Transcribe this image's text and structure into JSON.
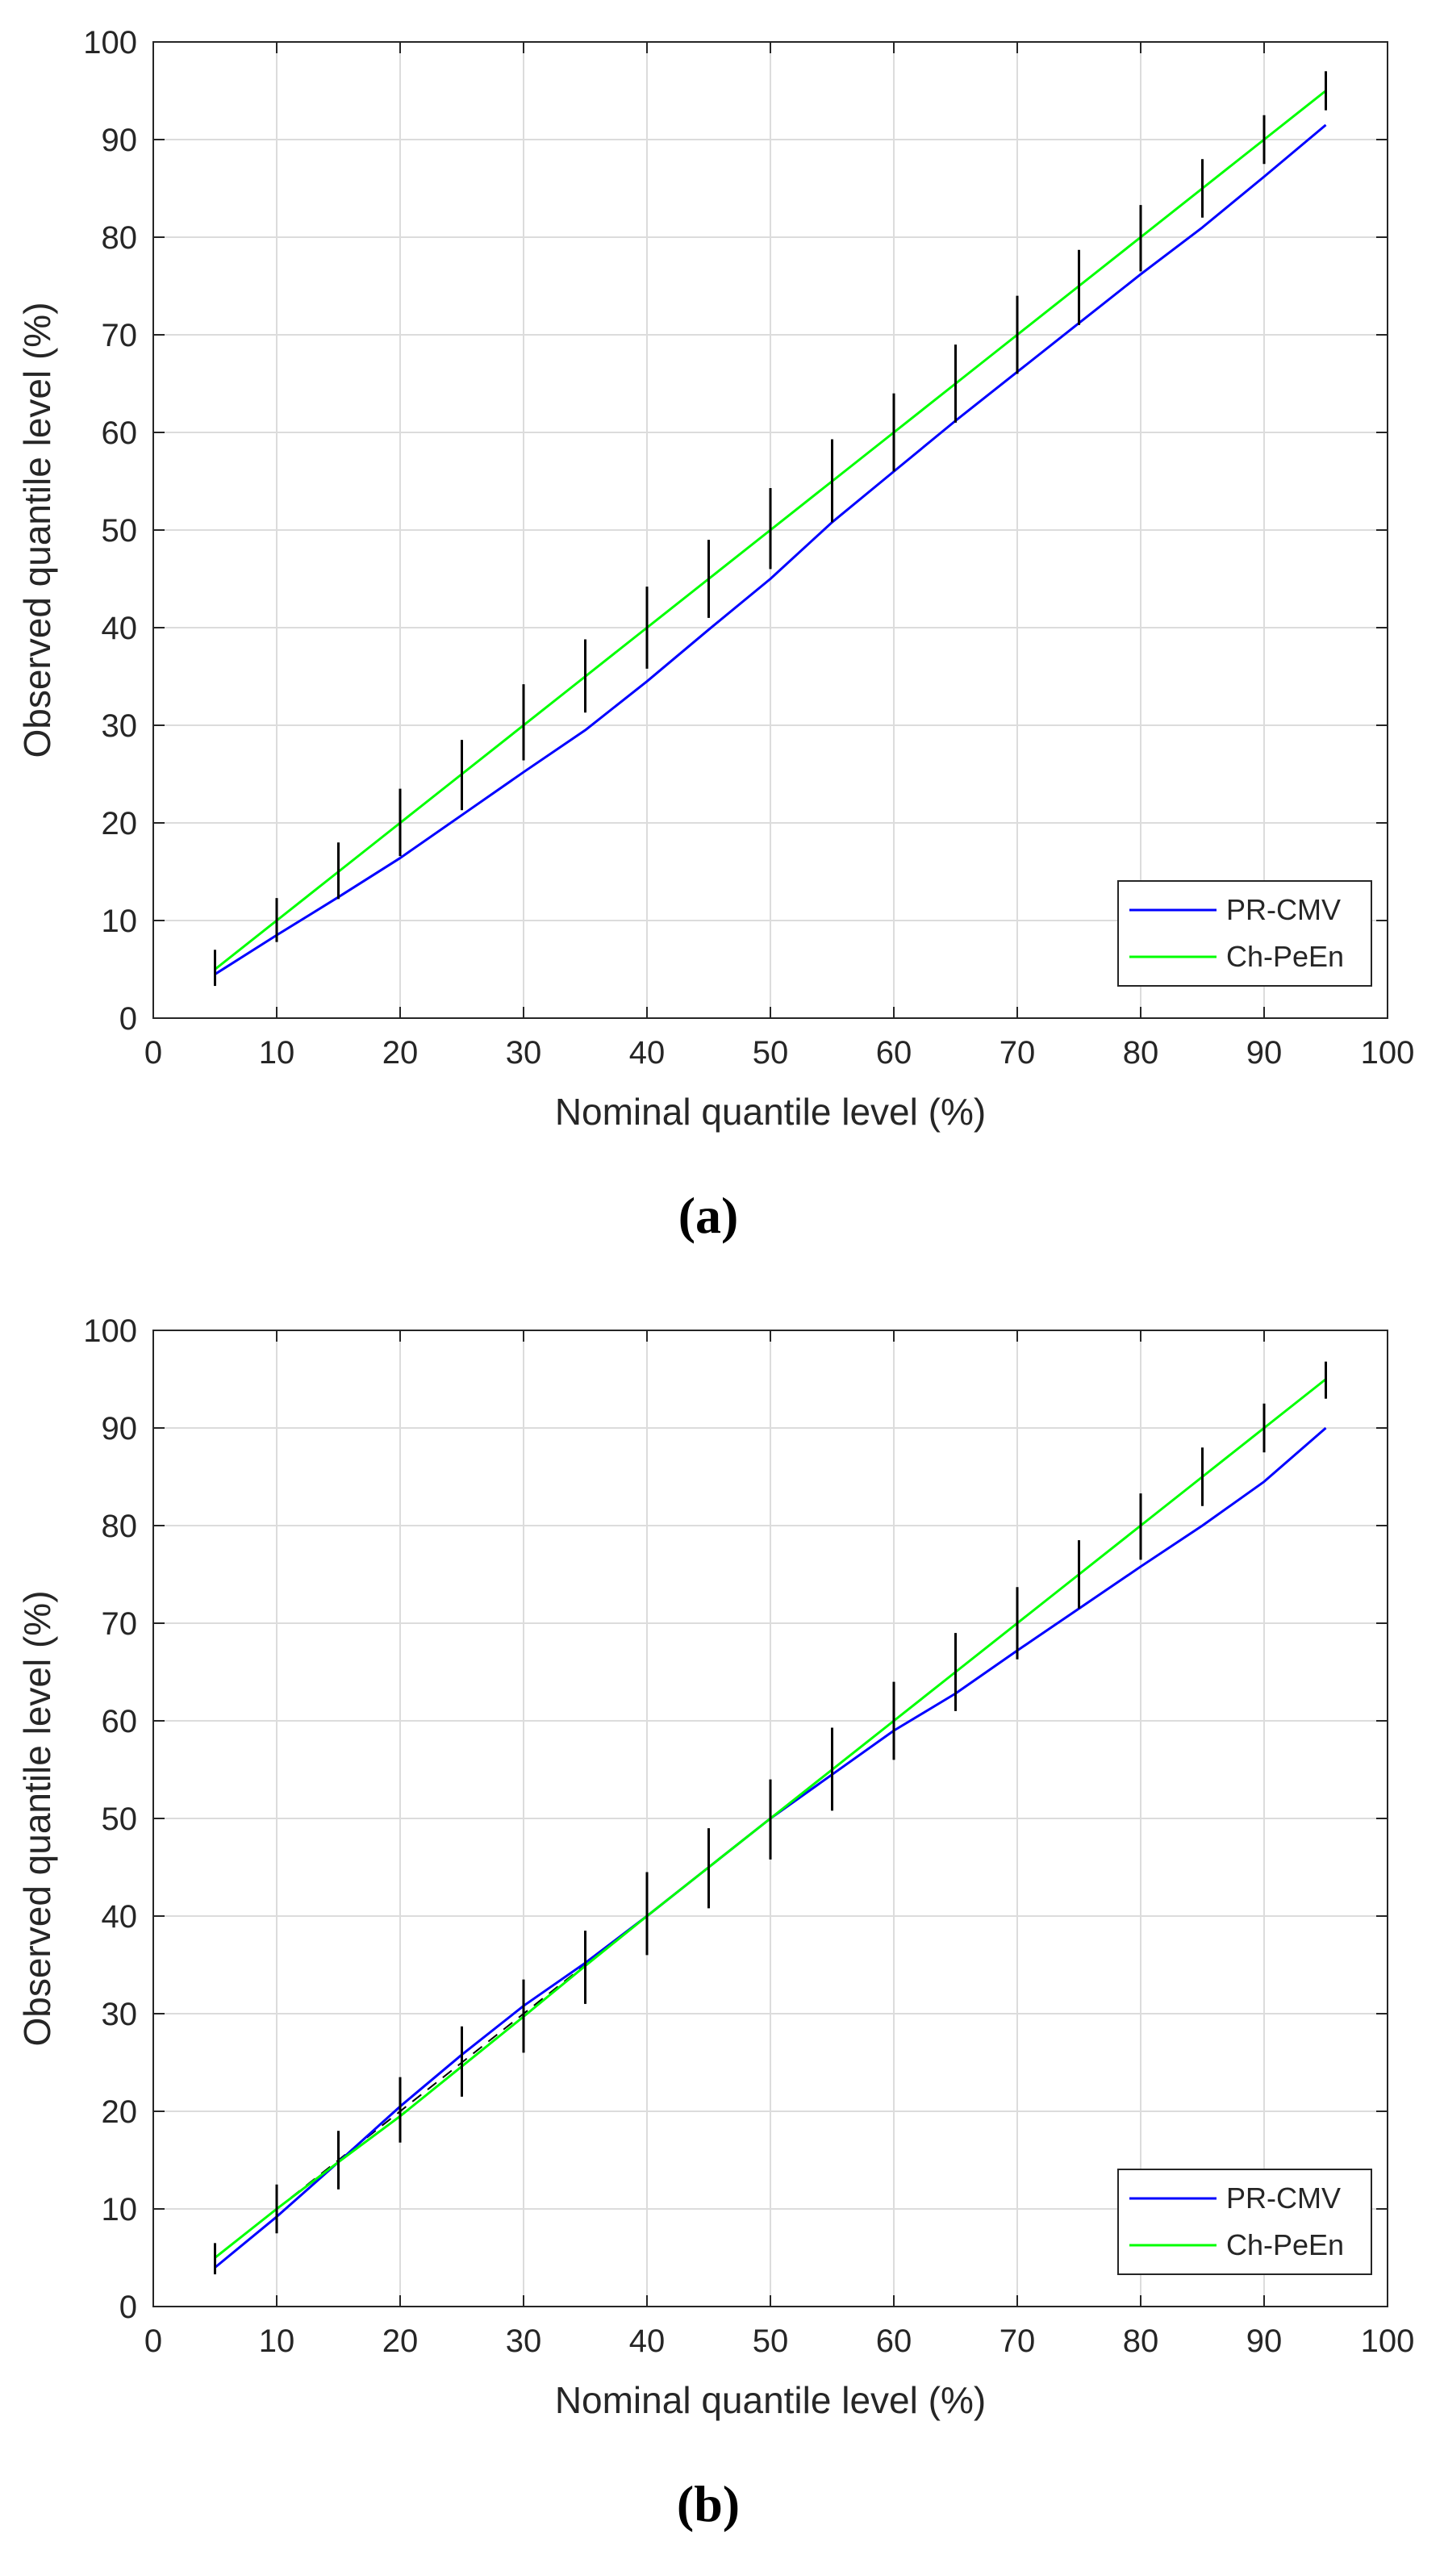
{
  "chart_data": [
    {
      "type": "line",
      "caption": "(a)",
      "xlabel": "Nominal quantile level (%)",
      "ylabel": "Observed quantile level (%)",
      "xlim": [
        0,
        100
      ],
      "ylim": [
        0,
        100
      ],
      "xticks": [
        0,
        10,
        20,
        30,
        40,
        50,
        60,
        70,
        80,
        90,
        100
      ],
      "yticks": [
        0,
        10,
        20,
        30,
        40,
        50,
        60,
        70,
        80,
        90,
        100
      ],
      "grid": true,
      "legend_position": "bottom-right",
      "x": [
        5,
        10,
        15,
        20,
        25,
        30,
        35,
        40,
        45,
        50,
        55,
        60,
        65,
        70,
        75,
        80,
        85,
        90,
        95
      ],
      "series": [
        {
          "name": "PR-CMV",
          "color": "#0000ff",
          "values": [
            4.5,
            8.5,
            12.4,
            16.4,
            20.8,
            25.2,
            29.5,
            34.5,
            39.8,
            45.0,
            50.8,
            56.0,
            61.2,
            66.2,
            71.2,
            76.2,
            81.0,
            86.2,
            91.5
          ]
        },
        {
          "name": "Ch-PeEn",
          "color": "#00ff00",
          "values": [
            5.0,
            10.0,
            15.0,
            20.0,
            25.0,
            30.0,
            35.0,
            40.0,
            45.0,
            50.0,
            55.0,
            60.0,
            65.0,
            70.0,
            75.0,
            80.0,
            85.0,
            90.0,
            95.0
          ]
        }
      ],
      "error_bars": {
        "color": "#000000",
        "low": [
          3.3,
          7.8,
          12.2,
          16.6,
          21.3,
          26.4,
          31.3,
          35.8,
          41.0,
          46.0,
          50.8,
          56.0,
          61.0,
          66.0,
          71.0,
          76.5,
          82.0,
          87.5,
          93.0
        ],
        "high": [
          7.0,
          12.3,
          18.0,
          23.5,
          28.5,
          34.2,
          38.8,
          44.2,
          49.0,
          54.3,
          59.3,
          64.0,
          69.0,
          74.0,
          78.7,
          83.3,
          88.0,
          92.5,
          97.0
        ]
      }
    },
    {
      "type": "line",
      "caption": "(b)",
      "xlabel": "Nominal quantile level (%)",
      "ylabel": "Observed quantile level (%)",
      "xlim": [
        0,
        100
      ],
      "ylim": [
        0,
        100
      ],
      "xticks": [
        0,
        10,
        20,
        30,
        40,
        50,
        60,
        70,
        80,
        90,
        100
      ],
      "yticks": [
        0,
        10,
        20,
        30,
        40,
        50,
        60,
        70,
        80,
        90,
        100
      ],
      "grid": true,
      "legend_position": "bottom-right",
      "x": [
        5,
        10,
        15,
        20,
        25,
        30,
        35,
        40,
        45,
        50,
        55,
        60,
        65,
        70,
        75,
        80,
        85,
        90,
        95
      ],
      "series": [
        {
          "name": "PR-CMV",
          "color": "#0000ff",
          "values": [
            4.0,
            9.2,
            14.8,
            20.5,
            25.8,
            30.8,
            35.2,
            40.0,
            45.0,
            50.0,
            54.5,
            59.0,
            62.8,
            67.2,
            71.5,
            75.8,
            80.0,
            84.5,
            90.0
          ]
        },
        {
          "name": "Ch-PeEn",
          "color": "#00ff00",
          "values": [
            5.0,
            10.0,
            14.8,
            19.5,
            24.6,
            29.7,
            34.9,
            40.0,
            45.0,
            50.0,
            55.0,
            60.0,
            65.0,
            70.0,
            75.0,
            80.0,
            85.0,
            90.0,
            95.0
          ]
        }
      ],
      "error_bars": {
        "color": "#000000",
        "low": [
          3.3,
          7.5,
          12.0,
          16.8,
          21.5,
          26.0,
          31.0,
          36.0,
          40.8,
          45.8,
          50.8,
          56.0,
          61.0,
          66.3,
          71.5,
          76.5,
          82.0,
          87.5,
          93.0
        ],
        "high": [
          6.5,
          12.5,
          18.0,
          23.5,
          28.7,
          33.5,
          38.5,
          44.5,
          49.0,
          54.0,
          59.3,
          64.0,
          69.0,
          73.7,
          78.5,
          83.3,
          88.0,
          92.5,
          96.8
        ]
      }
    }
  ]
}
